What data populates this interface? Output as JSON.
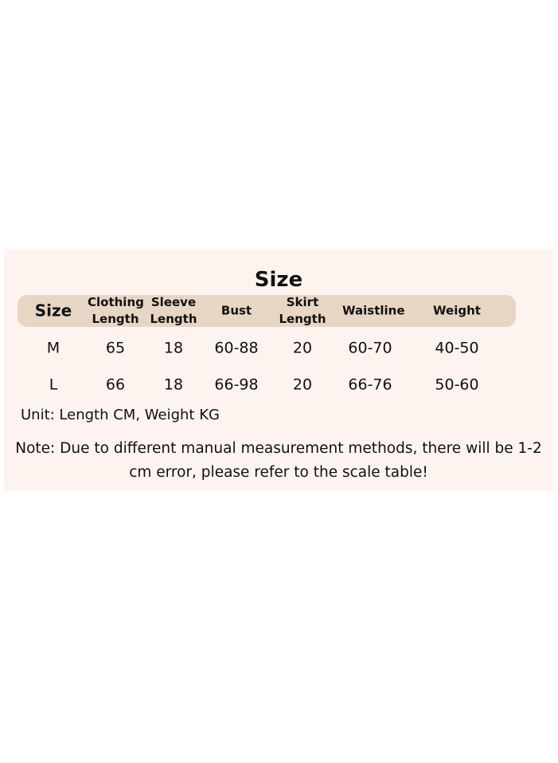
{
  "title": "Size",
  "table": {
    "headers": [
      "Size",
      "Clothing Length",
      "Sleeve Length",
      "Bust",
      "Skirt Length",
      "Waistline",
      "Weight"
    ],
    "rows": [
      [
        "M",
        "65",
        "18",
        "60-88",
        "20",
        "60-70",
        "40-50"
      ],
      [
        "L",
        "66",
        "18",
        "66-98",
        "20",
        "66-76",
        "50-60"
      ]
    ]
  },
  "unit_note": "Unit: Length CM, Weight KG",
  "note": "Note: Due to different manual measurement methods, there will be 1-2 cm error, please refer to the scale table!"
}
